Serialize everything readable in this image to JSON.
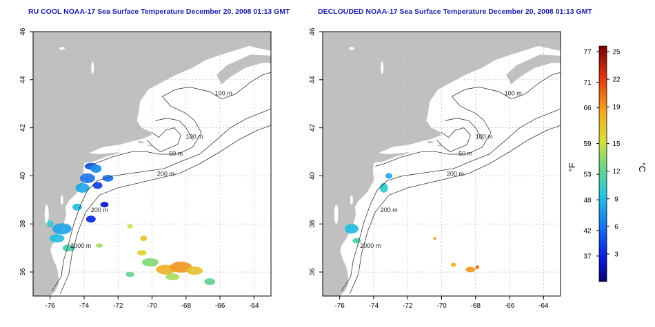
{
  "colors": {
    "title": "#1a1aa6",
    "land": "#c0c0c0",
    "frame": "#000000",
    "grid": "#b5b5b5",
    "contour": "#333333"
  },
  "left_map": {
    "title": "RU COOL NOAA-17 Sea Surface Temperature December 20, 2008 01:13 GMT",
    "contour_labels": [
      "100 m",
      "100 m",
      "50 m",
      "200 m",
      "200 m",
      "2000 m"
    ]
  },
  "right_map": {
    "title": "DECLOUDED NOAA-17 Sea Surface Temperature December 20, 2008 01:13 GMT",
    "contour_labels": [
      "100 m",
      "100 m",
      "50 m",
      "200 m",
      "200 m",
      "2000 m"
    ]
  },
  "axes": {
    "lon_ticks": [
      "-76",
      "-74",
      "-72",
      "-70",
      "-68",
      "-66",
      "-64"
    ],
    "lat_ticks": [
      "36",
      "38",
      "40",
      "42",
      "44",
      "46"
    ],
    "lon_range": [
      -77,
      -63
    ],
    "lat_range": [
      35,
      46
    ]
  },
  "colorbar": {
    "left_label": "°F",
    "right_label": "°C",
    "f_ticks": [
      "77",
      "71",
      "66",
      "59",
      "53",
      "48",
      "42",
      "37"
    ],
    "c_ticks": [
      "25",
      "22",
      "19",
      "15",
      "12",
      "9",
      "6",
      "3"
    ],
    "c_range": [
      0,
      25.6
    ]
  }
}
